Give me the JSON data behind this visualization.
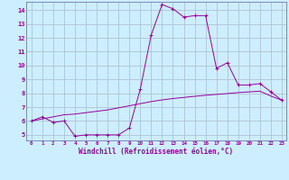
{
  "xlabel": "Windchill (Refroidissement éolien,°C)",
  "bg_color": "#cceeff",
  "grid_color": "#aabbcc",
  "line_color": "#990099",
  "spine_color": "#7777aa",
  "xlim": [
    -0.5,
    23.4
  ],
  "ylim": [
    4.6,
    14.6
  ],
  "xticks": [
    0,
    1,
    2,
    3,
    4,
    5,
    6,
    7,
    8,
    9,
    10,
    11,
    12,
    13,
    14,
    15,
    16,
    17,
    18,
    19,
    20,
    21,
    22,
    23
  ],
  "yticks": [
    5,
    6,
    7,
    8,
    9,
    10,
    11,
    12,
    13,
    14
  ],
  "series1_x": [
    0,
    1,
    2,
    3,
    4,
    5,
    6,
    7,
    8,
    9,
    10,
    11,
    12,
    13,
    14,
    15,
    16,
    17,
    18,
    19,
    20,
    21,
    22,
    23
  ],
  "series1_y": [
    6.0,
    6.3,
    5.9,
    6.0,
    4.9,
    5.0,
    5.0,
    5.0,
    5.0,
    5.5,
    8.3,
    12.2,
    14.4,
    14.1,
    13.5,
    13.6,
    13.6,
    9.8,
    10.2,
    8.6,
    8.6,
    8.7,
    8.1,
    7.5
  ],
  "series2_x": [
    0,
    1,
    2,
    3,
    4,
    5,
    6,
    7,
    8,
    9,
    10,
    11,
    12,
    13,
    14,
    15,
    16,
    17,
    18,
    19,
    20,
    21,
    22,
    23
  ],
  "series2_y": [
    6.0,
    6.15,
    6.3,
    6.45,
    6.5,
    6.6,
    6.7,
    6.8,
    6.95,
    7.1,
    7.25,
    7.4,
    7.52,
    7.62,
    7.7,
    7.78,
    7.86,
    7.92,
    7.98,
    8.05,
    8.1,
    8.15,
    7.8,
    7.5
  ],
  "marker": "+"
}
